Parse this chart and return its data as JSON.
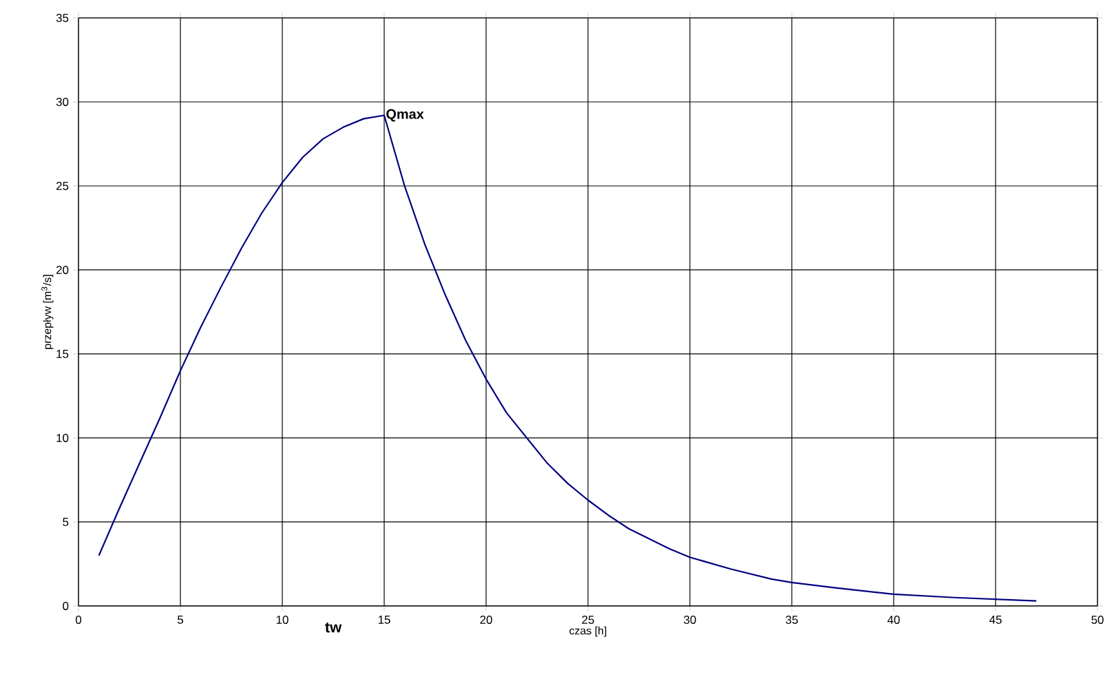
{
  "chart_data": {
    "type": "line",
    "xlabel": "czas [h]",
    "ylabel": "przepływ [m$^{3}$/s]",
    "x": [
      1,
      2,
      3,
      4,
      5,
      6,
      7,
      8,
      9,
      10,
      11,
      12,
      13,
      14,
      15,
      16,
      17,
      18,
      19,
      20,
      21,
      22,
      23,
      24,
      25,
      26,
      27,
      28,
      29,
      30,
      32,
      34,
      35,
      37,
      40,
      43,
      45,
      47
    ],
    "series": [
      {
        "color": "#000080",
        "values": [
          3,
          5.8,
          8.5,
          11.2,
          14,
          16.6,
          19,
          21.3,
          23.4,
          25.2,
          26.7,
          27.8,
          28.5,
          29,
          29.2,
          25,
          21.5,
          18.5,
          15.8,
          13.5,
          11.5,
          10,
          8.5,
          7.3,
          6.3,
          5.4,
          4.6,
          4,
          3.4,
          2.9,
          2.2,
          1.6,
          1.4,
          1.1,
          0.7,
          0.5,
          0.4,
          0.3
        ]
      }
    ],
    "annotations": [
      {
        "text": "Qmax",
        "x": 15,
        "y": 29.2
      },
      "tw"
    ],
    "xlim": [
      0,
      50
    ],
    "ylim": [
      0,
      35
    ],
    "xticks": [
      0,
      5,
      10,
      15,
      20,
      25,
      30,
      35,
      40,
      45,
      50
    ],
    "yticks": [
      0,
      5,
      10,
      15,
      20,
      25,
      30,
      35
    ],
    "grid": true,
    "marker": "none",
    "line_style": "solid"
  }
}
